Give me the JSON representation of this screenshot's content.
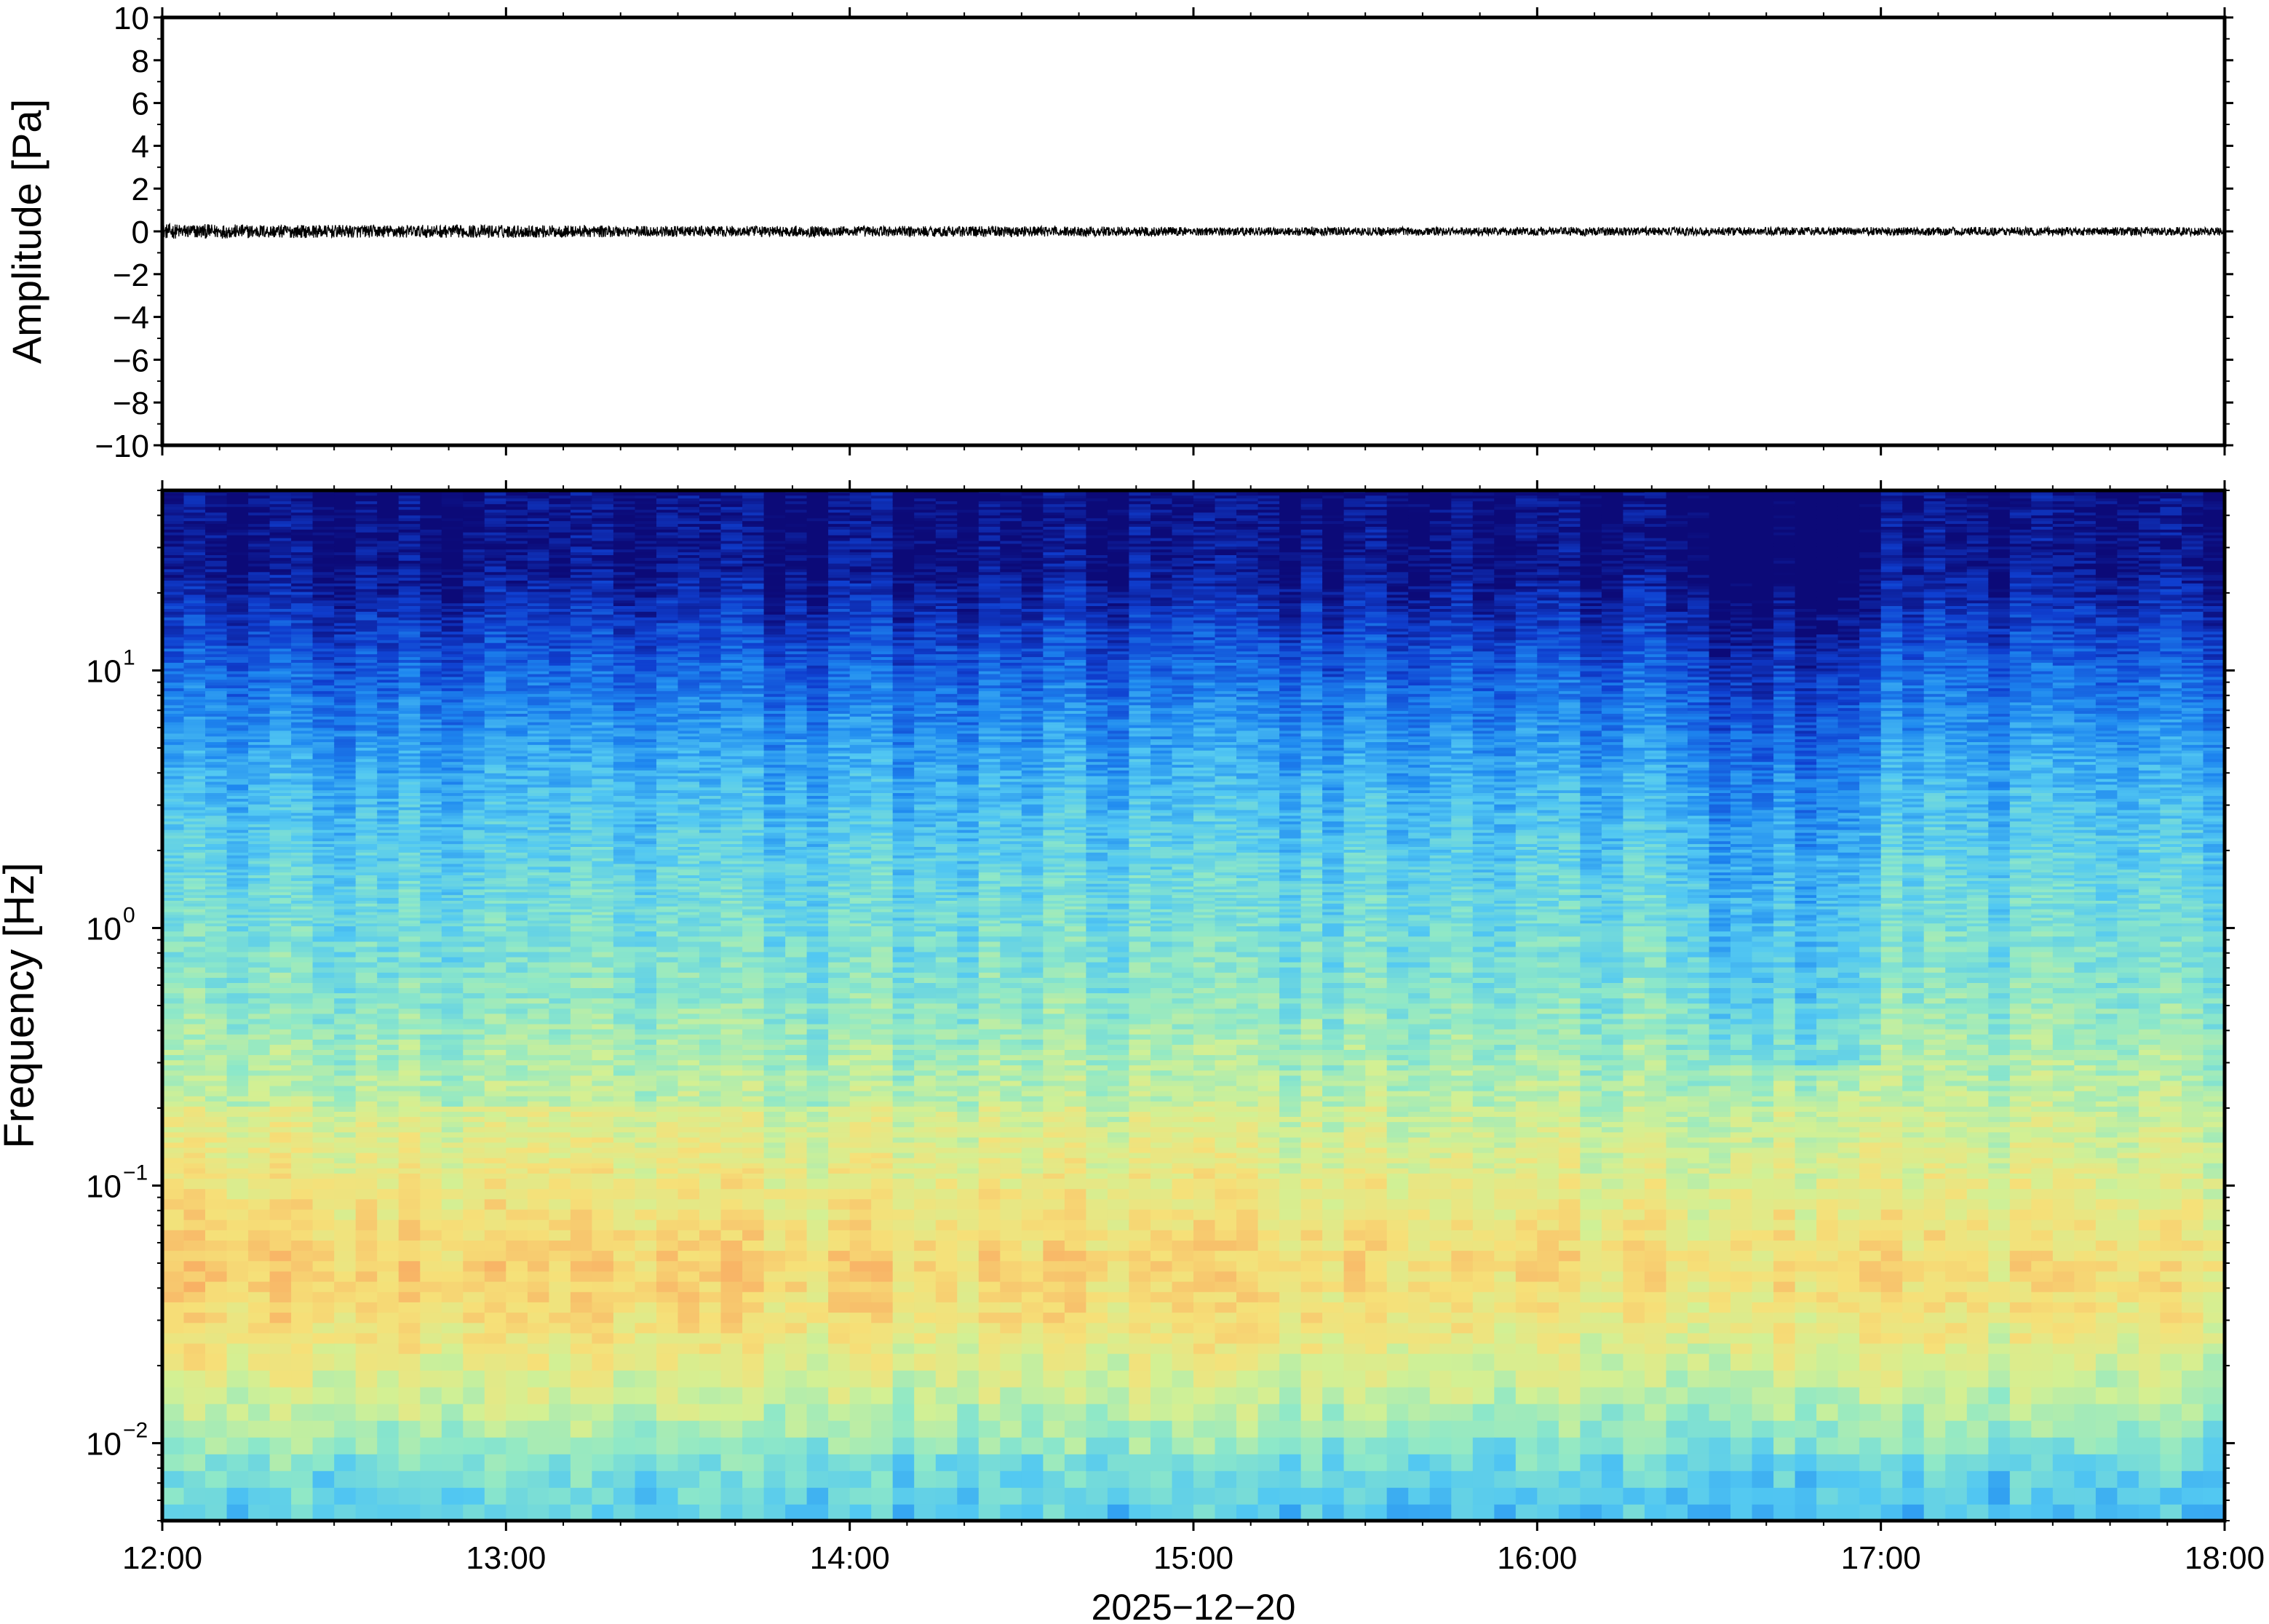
{
  "chart_data": [
    {
      "type": "line",
      "ylabel": "Amplitude [Pa]",
      "ylim": [
        -10,
        10
      ],
      "yticks": [
        10,
        8,
        6,
        4,
        2,
        0,
        -2,
        -4,
        -6,
        -8,
        -10
      ],
      "ytick_labels": [
        "10",
        "8",
        "6",
        "4",
        "2",
        "0",
        "−2",
        "−4",
        "−6",
        "−8",
        "−10"
      ],
      "xlim": [
        "12:00",
        "18:00"
      ],
      "series": [
        {
          "color": "#000000",
          "x": [
            "12:00",
            "12:30",
            "13:00",
            "13:30",
            "14:00",
            "14:30",
            "15:00",
            "15:30",
            "16:00",
            "16:30",
            "17:00",
            "17:30",
            "18:00"
          ],
          "envelope": [
            0.35,
            0.3,
            0.3,
            0.25,
            0.25,
            0.25,
            0.2,
            0.2,
            0.2,
            0.2,
            0.2,
            0.2,
            0.2
          ]
        }
      ]
    },
    {
      "type": "heatmap",
      "ylabel": "Frequency [Hz]",
      "yscale": "log",
      "ylim": [
        0.005,
        50
      ],
      "yticks": [
        0.01,
        0.1,
        1,
        10
      ],
      "ytick_labels": [
        {
          "base": "10",
          "exp": "−2"
        },
        {
          "base": "10",
          "exp": "−1"
        },
        {
          "base": "10",
          "exp": "0"
        },
        {
          "base": "10",
          "exp": "1"
        }
      ],
      "xlabel": "2025−12−20",
      "xlim": [
        "12:00",
        "18:00"
      ],
      "xticks": [
        "12:00",
        "13:00",
        "14:00",
        "15:00",
        "16:00",
        "17:00",
        "18:00"
      ],
      "colormap": [
        "#0c0a78",
        "#0f3fd0",
        "#1e88f0",
        "#52c8f2",
        "#8ee8c8",
        "#d2f094",
        "#f6e078",
        "#f8b466",
        "#f47a4a"
      ],
      "profile": {
        "freq_hz": [
          0.005,
          0.008,
          0.012,
          0.02,
          0.03,
          0.05,
          0.08,
          0.15,
          0.3,
          0.6,
          1.5,
          4,
          8,
          12,
          18,
          25,
          50
        ],
        "level": [
          0.34,
          0.4,
          0.52,
          0.62,
          0.7,
          0.74,
          0.68,
          0.62,
          0.55,
          0.48,
          0.42,
          0.32,
          0.22,
          0.15,
          0.08,
          0.02,
          0.0
        ]
      },
      "quiet_period": {
        "start": "16:30",
        "end": "17:00"
      }
    }
  ]
}
